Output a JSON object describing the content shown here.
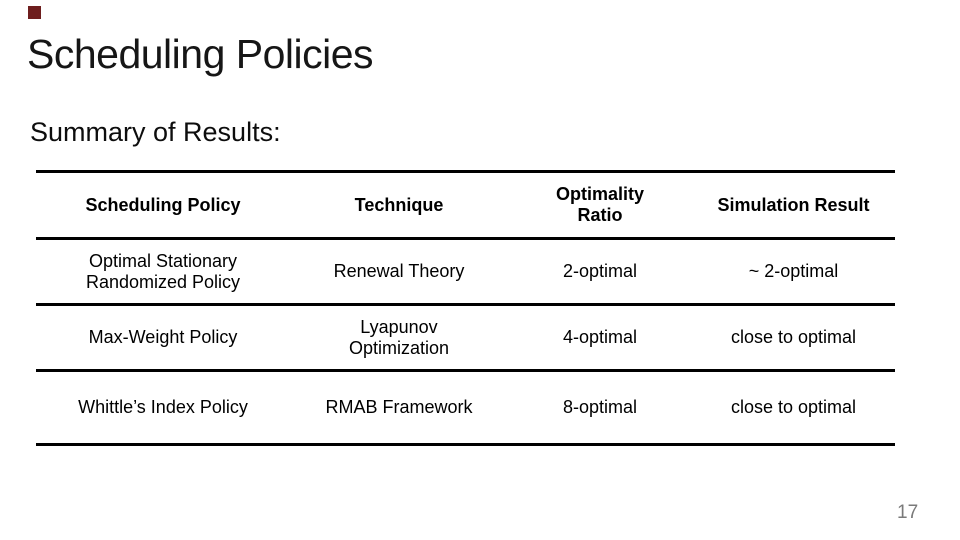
{
  "slide": {
    "title": "Scheduling Policies",
    "subtitle": "Summary of Results:",
    "page_number": "17",
    "accent_color": "#6e1e1e",
    "text_color": "#000000",
    "page_number_color": "#7a7a7a"
  },
  "table": {
    "columns": [
      "Scheduling Policy",
      "Technique",
      "Optimality\nRatio",
      "Simulation Result"
    ],
    "rows": [
      [
        "Optimal Stationary\nRandomized Policy",
        "Renewal Theory",
        "2-optimal",
        "~ 2-optimal"
      ],
      [
        "Max-Weight Policy",
        "Lyapunov\nOptimization",
        "4-optimal",
        "close to optimal"
      ],
      [
        "Whittle’s Index Policy",
        "RMAB Framework",
        "8-optimal",
        "close to optimal"
      ]
    ]
  }
}
